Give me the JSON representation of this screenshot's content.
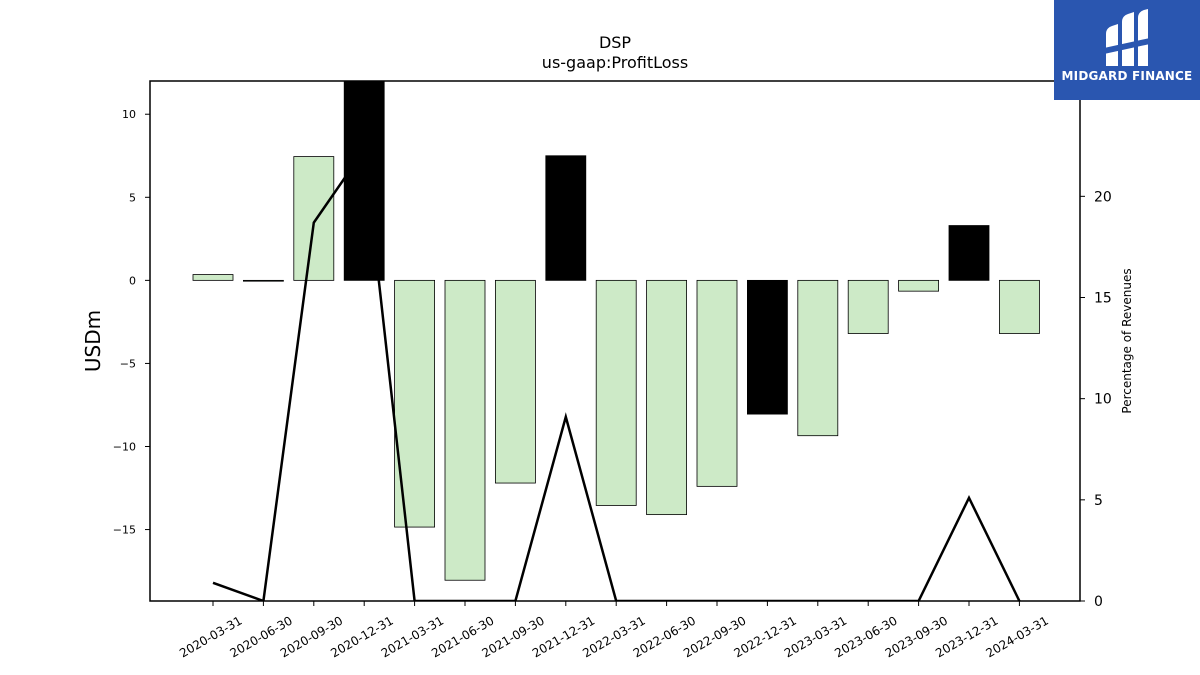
{
  "chart_data": {
    "type": "bar",
    "title": "DSP",
    "subtitle": "us-gaap:ProfitLoss",
    "ylabel": "USDm",
    "y2label": "Percentage of Revenues",
    "categories": [
      "2020-03-31",
      "2020-06-30",
      "2020-09-30",
      "2020-12-31",
      "2021-03-31",
      "2021-06-30",
      "2021-09-30",
      "2021-12-31",
      "2022-03-31",
      "2022-06-30",
      "2022-09-30",
      "2022-12-31",
      "2023-03-31",
      "2023-06-30",
      "2023-09-30",
      "2023-12-31",
      "2024-03-31"
    ],
    "series": [
      {
        "values": [
          0.35,
          -0.05,
          7.45,
          11.95,
          -14.85,
          -18.05,
          -12.2,
          7.5,
          -13.55,
          -14.1,
          -12.4,
          -8.05,
          -9.35,
          -3.2,
          -0.65,
          3.3,
          -3.2
        ],
        "colors": [
          "#cdeac7",
          "#cdeac7",
          "#cdeac7",
          "#000000",
          "#cdeac7",
          "#cdeac7",
          "#cdeac7",
          "#000000",
          "#cdeac7",
          "#cdeac7",
          "#cdeac7",
          "#000000",
          "#cdeac7",
          "#cdeac7",
          "#cdeac7",
          "#000000",
          "#cdeac7"
        ]
      },
      {
        "axis": "right",
        "type": "line",
        "values": [
          0.9,
          0.0,
          18.7,
          22.3,
          0.0,
          0.0,
          0.0,
          9.1,
          0.0,
          0.0,
          0.0,
          0.0,
          0.0,
          0.0,
          0.0,
          5.1,
          0.0
        ]
      }
    ],
    "ylim": [
      -19.3,
      12.0
    ],
    "y2lim": [
      0,
      25.7
    ],
    "yticks": [
      10,
      5,
      0,
      -5,
      -10,
      -15
    ],
    "yticklabels": [
      "10",
      "5",
      "0",
      "−5",
      "−10",
      "−15"
    ],
    "y2ticks": [
      0,
      5,
      10,
      15,
      20
    ],
    "y2ticklabels": [
      "0",
      "5",
      "10",
      "15",
      "20"
    ],
    "grid": false,
    "legend": "none"
  },
  "logo": {
    "text": "MIDGARD FINANCE",
    "color": "#2a56b0"
  }
}
